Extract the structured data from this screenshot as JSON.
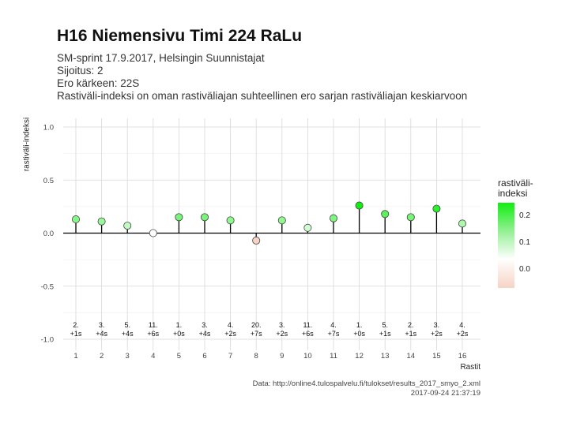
{
  "header": {
    "title": "H16 Niemensivu Timi 224 RaLu",
    "subtitle_lines": [
      "SM-sprint 17.9.2017, Helsingin Suunnistajat",
      "Sijoitus: 2",
      "Ero kärkeen: 22S",
      "Rastiväli-indeksi on oman rastiväliajan suhteellinen ero sarjan rastiväliajan keskiarvoon"
    ]
  },
  "legend": {
    "title_line1": "rastiväli-",
    "title_line2": "indeksi",
    "ticks": [
      "0.2",
      "0.1",
      "0.0"
    ]
  },
  "footer": {
    "source": "Data: http://online4.tulospalvelu.fi/tulokset/results_2017_smyo_2.xml",
    "timestamp": "2017-09-24 21:37:19"
  },
  "chart_data": {
    "type": "lollipop",
    "xlabel": "Rastit",
    "ylabel": "rastiväli-indeksi",
    "ylim": [
      -1.0,
      1.0
    ],
    "yticks": [
      "1.0",
      "0.5",
      "0.0",
      "-0.5",
      "-1.0"
    ],
    "x": [
      1,
      2,
      3,
      4,
      5,
      6,
      7,
      8,
      9,
      10,
      11,
      12,
      13,
      14,
      15,
      16
    ],
    "values": [
      0.13,
      0.11,
      0.07,
      0.0,
      0.15,
      0.15,
      0.12,
      -0.07,
      0.12,
      0.05,
      0.14,
      0.26,
      0.18,
      0.15,
      0.23,
      0.09
    ],
    "leg_ranks": [
      "2.",
      "3.",
      "5.",
      "11.",
      "1.",
      "3.",
      "4.",
      "20.",
      "3.",
      "11.",
      "4.",
      "1.",
      "5.",
      "2.",
      "3.",
      "4."
    ],
    "leg_diffs": [
      "+1s",
      "+4s",
      "+4s",
      "+6s",
      "+0s",
      "+4s",
      "+2s",
      "+7s",
      "+2s",
      "+6s",
      "+7s",
      "+0s",
      "+1s",
      "+1s",
      "+2s",
      "+2s"
    ],
    "grid": true,
    "legend_position": "right",
    "colors": {
      "high": "#11ee11",
      "zero": "#ffffff",
      "low": "#f6d3c4",
      "baseline": "#000000"
    }
  }
}
